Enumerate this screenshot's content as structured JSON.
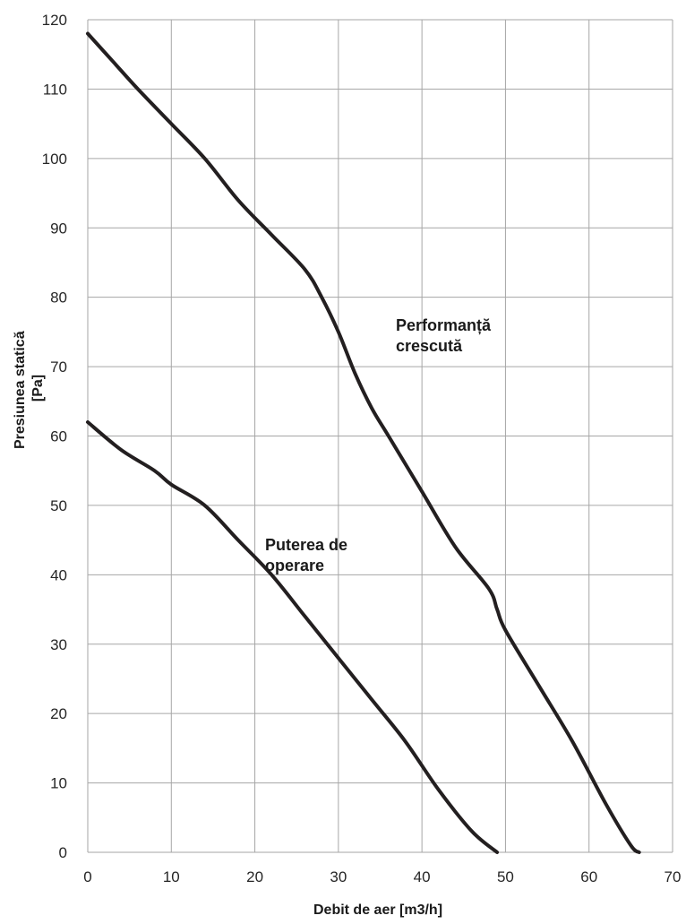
{
  "chart_data": {
    "type": "line",
    "xlabel": "Debit de aer [m3/h]",
    "ylabel_lines": [
      "Presiunea statică",
      "[Pa]"
    ],
    "xlim": [
      0,
      70
    ],
    "ylim": [
      0,
      120
    ],
    "x_ticks": [
      0,
      10,
      20,
      30,
      40,
      50,
      60,
      70
    ],
    "y_ticks": [
      0,
      10,
      20,
      30,
      40,
      50,
      60,
      70,
      80,
      90,
      100,
      110,
      120
    ],
    "grid": true,
    "line_color": "#231f20",
    "series": [
      {
        "name_lines": [
          "Performanță",
          "crescută"
        ],
        "x": [
          0,
          3,
          6,
          10,
          14,
          18,
          22,
          26,
          28,
          30,
          32,
          34,
          36,
          40,
          44,
          48,
          49,
          50,
          54,
          58,
          62,
          65,
          66
        ],
        "y": [
          118,
          114,
          110,
          105,
          100,
          94,
          89,
          84,
          80,
          75,
          69,
          64,
          60,
          52,
          44,
          38,
          35,
          32,
          24,
          16,
          7,
          1,
          0
        ]
      },
      {
        "name_lines": [
          "Puterea de",
          "operare"
        ],
        "x": [
          0,
          4,
          8,
          10,
          14,
          18,
          22,
          26,
          30,
          34,
          38,
          42,
          46,
          49
        ],
        "y": [
          62,
          58,
          55,
          53,
          50,
          45,
          40,
          34,
          28,
          22,
          16,
          9,
          3,
          0
        ]
      }
    ]
  }
}
